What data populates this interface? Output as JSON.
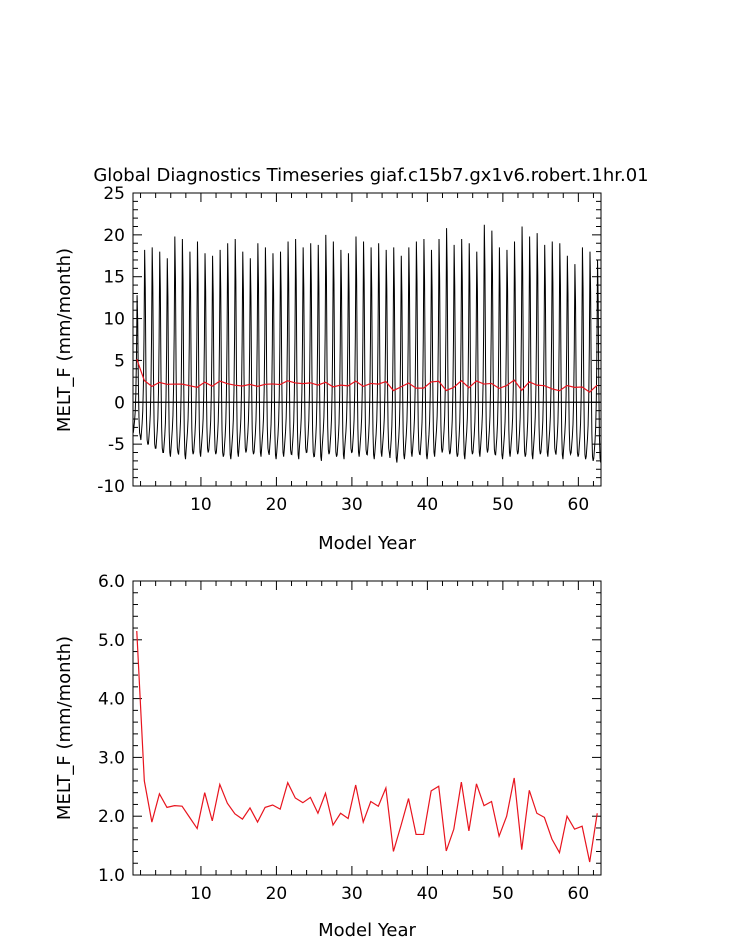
{
  "title": "Global Diagnostics Timeseries giaf.c15b7.gx1v6.robert.1hr.01",
  "colors": {
    "monthly": "#000000",
    "annual": "#e8141e",
    "axis": "#000000"
  },
  "chart_data": [
    {
      "type": "line",
      "title": "Global Diagnostics Timeseries giaf.c15b7.gx1v6.robert.1hr.01",
      "xlabel": "Model Year",
      "ylabel": "MELT_F (mm/month)",
      "xlim": [
        1,
        63
      ],
      "ylim": [
        -10,
        25
      ],
      "x_ticks": [
        "10",
        "20",
        "30",
        "40",
        "50",
        "60"
      ],
      "y_ticks": [
        "25",
        "20",
        "15",
        "10",
        "5",
        "0",
        "-5",
        "-10"
      ],
      "zero_line": true,
      "monthly_pattern": [
        -4.5,
        -3.5,
        -2.5,
        -1.0,
        2.0,
        8.0,
        18.5,
        14.0,
        4.0,
        -2.0,
        -4.5,
        -5.0
      ],
      "monthly_peaks": [
        12.8,
        18.2,
        18.5,
        18.0,
        17.2,
        19.8,
        19.5,
        18.0,
        19.2,
        17.8,
        17.5,
        18.2,
        19.0,
        19.5,
        18.0,
        17.2,
        19.0,
        18.5,
        17.8,
        18.0,
        19.2,
        19.5,
        18.5,
        19.0,
        18.8,
        20.0,
        19.2,
        18.2,
        17.8,
        19.8,
        19.2,
        18.5,
        19.0,
        18.2,
        18.5,
        17.5,
        18.5,
        19.2,
        19.5,
        18.2,
        19.5,
        20.8,
        18.8,
        19.5,
        19.0,
        18.0,
        21.2,
        20.5,
        18.5,
        18.2,
        19.2,
        21.0,
        19.8,
        20.2,
        18.8,
        19.2,
        19.0,
        17.5,
        16.5,
        18.5,
        18.0,
        17.0
      ],
      "monthly_troughs": [
        -4.0,
        -5.0,
        -5.5,
        -6.0,
        -6.5,
        -6.0,
        -6.8,
        -6.2,
        -6.5,
        -6.0,
        -6.2,
        -6.5,
        -6.8,
        -6.5,
        -6.0,
        -6.2,
        -6.5,
        -6.0,
        -6.8,
        -6.5,
        -6.2,
        -6.8,
        -6.0,
        -6.5,
        -7.0,
        -6.2,
        -6.5,
        -6.8,
        -6.0,
        -6.5,
        -6.2,
        -6.8,
        -6.5,
        -6.0,
        -7.2,
        -6.8,
        -6.5,
        -6.2,
        -6.8,
        -6.5,
        -6.0,
        -6.2,
        -6.5,
        -6.8,
        -6.2,
        -6.5,
        -6.0,
        -6.2,
        -6.8,
        -6.5,
        -6.2,
        -6.5,
        -6.8,
        -6.2,
        -6.5,
        -6.0,
        -6.8,
        -6.2,
        -6.5,
        -6.8,
        -7.0,
        -7.2
      ],
      "series": [
        {
          "x": [
            1.5,
            2.5,
            3.5,
            4.5,
            5.5,
            6.5,
            7.5,
            8.5,
            9.5,
            10.5,
            11.5,
            12.5,
            13.5,
            14.5,
            15.5,
            16.5,
            17.5,
            18.5,
            19.5,
            20.5,
            21.5,
            22.5,
            23.5,
            24.5,
            25.5,
            26.5,
            27.5,
            28.5,
            29.5,
            30.5,
            31.5,
            32.5,
            33.5,
            34.5,
            35.5,
            36.5,
            37.5,
            38.5,
            39.5,
            40.5,
            41.5,
            42.5,
            43.5,
            44.5,
            45.5,
            46.5,
            47.5,
            48.5,
            49.5,
            50.5,
            51.5,
            52.5,
            53.5,
            54.5,
            55.5,
            56.5,
            57.5,
            58.5,
            59.5,
            60.5,
            61.5,
            62.5
          ],
          "y": [
            5.15,
            2.6,
            1.9,
            2.38,
            2.15,
            2.18,
            2.17,
            1.98,
            1.79,
            2.4,
            1.92,
            2.54,
            2.22,
            2.04,
            1.95,
            2.14,
            1.9,
            2.15,
            2.19,
            2.12,
            2.57,
            2.31,
            2.23,
            2.32,
            2.05,
            2.39,
            1.85,
            2.05,
            1.96,
            2.53,
            1.9,
            2.25,
            2.17,
            2.48,
            1.4,
            1.84,
            2.3,
            1.69,
            1.69,
            2.43,
            2.51,
            1.41,
            1.78,
            2.58,
            1.75,
            2.55,
            2.18,
            2.25,
            1.66,
            2.0,
            2.65,
            1.43,
            2.44,
            2.05,
            1.98,
            1.61,
            1.38,
            2.0,
            1.78,
            1.83,
            1.22,
            2.05
          ]
        }
      ]
    },
    {
      "type": "line",
      "xlabel": "Model Year",
      "ylabel": "MELT_F (mm/month)",
      "xlim": [
        1,
        63
      ],
      "ylim": [
        1,
        6
      ],
      "x_ticks": [
        "10",
        "20",
        "30",
        "40",
        "50",
        "60"
      ],
      "y_ticks": [
        "6.0",
        "5.0",
        "4.0",
        "3.0",
        "2.0",
        "1.0"
      ],
      "series": [
        {
          "x": [
            1.5,
            2.5,
            3.5,
            4.5,
            5.5,
            6.5,
            7.5,
            8.5,
            9.5,
            10.5,
            11.5,
            12.5,
            13.5,
            14.5,
            15.5,
            16.5,
            17.5,
            18.5,
            19.5,
            20.5,
            21.5,
            22.5,
            23.5,
            24.5,
            25.5,
            26.5,
            27.5,
            28.5,
            29.5,
            30.5,
            31.5,
            32.5,
            33.5,
            34.5,
            35.5,
            36.5,
            37.5,
            38.5,
            39.5,
            40.5,
            41.5,
            42.5,
            43.5,
            44.5,
            45.5,
            46.5,
            47.5,
            48.5,
            49.5,
            50.5,
            51.5,
            52.5,
            53.5,
            54.5,
            55.5,
            56.5,
            57.5,
            58.5,
            59.5,
            60.5,
            61.5,
            62.5
          ],
          "y": [
            5.15,
            2.6,
            1.9,
            2.38,
            2.15,
            2.18,
            2.17,
            1.98,
            1.79,
            2.4,
            1.92,
            2.54,
            2.22,
            2.04,
            1.95,
            2.14,
            1.9,
            2.15,
            2.19,
            2.12,
            2.57,
            2.31,
            2.23,
            2.32,
            2.05,
            2.39,
            1.85,
            2.05,
            1.96,
            2.53,
            1.9,
            2.25,
            2.17,
            2.48,
            1.4,
            1.84,
            2.3,
            1.69,
            1.69,
            2.43,
            2.51,
            1.41,
            1.78,
            2.58,
            1.75,
            2.55,
            2.18,
            2.25,
            1.66,
            2.0,
            2.65,
            1.43,
            2.44,
            2.05,
            1.98,
            1.61,
            1.38,
            2.0,
            1.78,
            1.83,
            1.22,
            2.05
          ]
        }
      ]
    }
  ]
}
